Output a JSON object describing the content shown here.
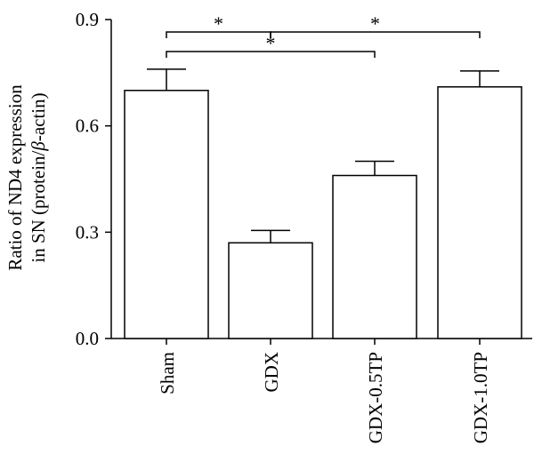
{
  "chart_data": {
    "type": "bar",
    "categories": [
      "Sham",
      "GDX",
      "GDX-0.5TP",
      "GDX-1.0TP"
    ],
    "values": [
      0.7,
      0.27,
      0.46,
      0.71
    ],
    "errors": [
      0.06,
      0.035,
      0.04,
      0.045
    ],
    "ylabel_line1": "Ratio of ND4 expression",
    "ylabel_line2_pre": "in SN (protein/",
    "ylabel_beta": "β",
    "ylabel_line2_post": "-actin)",
    "ylim": [
      0,
      0.9
    ],
    "yticks": [
      0.0,
      0.3,
      0.6,
      0.9
    ],
    "ytick_labels": [
      "0.0",
      "0.3",
      "0.6",
      "0.9"
    ],
    "significance": [
      {
        "from": 0,
        "to": 1,
        "label": "*"
      },
      {
        "from": 1,
        "to": 3,
        "label": "*"
      },
      {
        "from": 0,
        "to": 2,
        "label": "*"
      }
    ],
    "bar_fill": "#ffffff",
    "bar_stroke": "#000000"
  }
}
